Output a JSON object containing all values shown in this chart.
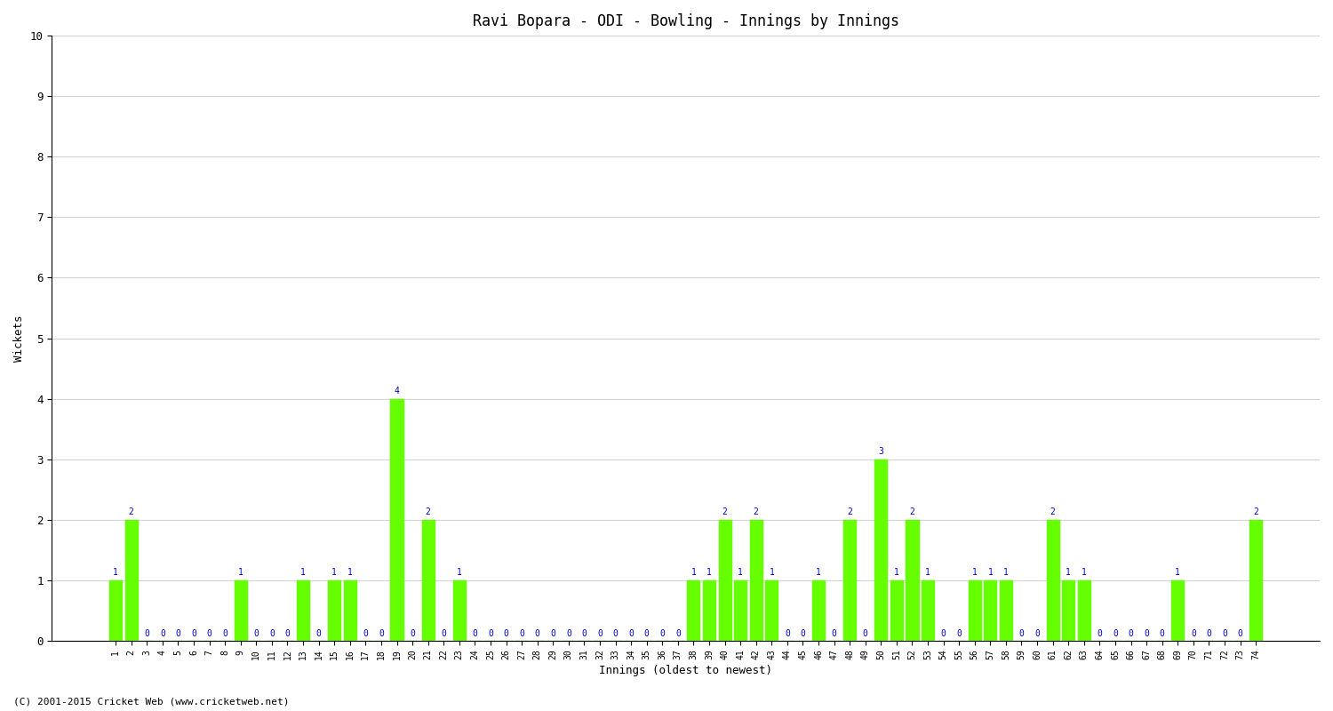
{
  "title": "Ravi Bopara - ODI - Bowling - Innings by Innings",
  "xlabel": "Innings (oldest to newest)",
  "ylabel": "Wickets",
  "footer": "(C) 2001-2015 Cricket Web (www.cricketweb.net)",
  "ylim": [
    0,
    10
  ],
  "yticks": [
    0,
    1,
    2,
    3,
    4,
    5,
    6,
    7,
    8,
    9,
    10
  ],
  "bar_color": "#66ff00",
  "label_color": "#0000cc",
  "innings": [
    1,
    2,
    3,
    4,
    5,
    6,
    7,
    8,
    9,
    10,
    11,
    12,
    13,
    14,
    15,
    16,
    17,
    18,
    19,
    20,
    21,
    22,
    23,
    24,
    25,
    26,
    27,
    28,
    29,
    30,
    31,
    32,
    33,
    34,
    35,
    36,
    37,
    38,
    39,
    40,
    41,
    42,
    43,
    44,
    45,
    46,
    47,
    48,
    49,
    50,
    51,
    52,
    53,
    54,
    55,
    56,
    57,
    58,
    59,
    60,
    61,
    62,
    63,
    64,
    65,
    66,
    67,
    68,
    69,
    70,
    71,
    72,
    73,
    74
  ],
  "wickets": [
    1,
    2,
    0,
    0,
    0,
    0,
    0,
    0,
    1,
    0,
    0,
    0,
    1,
    0,
    1,
    1,
    0,
    0,
    4,
    0,
    2,
    0,
    1,
    0,
    0,
    0,
    0,
    0,
    0,
    0,
    0,
    0,
    0,
    0,
    0,
    0,
    0,
    1,
    1,
    2,
    1,
    2,
    1,
    0,
    0,
    1,
    0,
    2,
    0,
    3,
    1,
    2,
    1,
    0,
    0,
    1,
    1,
    1,
    0,
    0,
    2,
    1,
    1,
    0,
    0,
    0,
    0,
    0,
    1,
    0,
    0,
    0,
    0,
    2
  ]
}
